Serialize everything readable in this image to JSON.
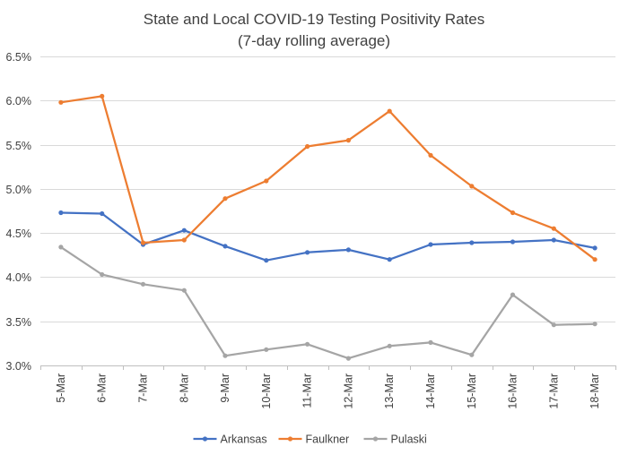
{
  "chart_data": {
    "type": "line",
    "title": "State and Local COVID-19 Testing Positivity Rates",
    "subtitle": "(7-day rolling average)",
    "xlabel": "",
    "ylabel": "",
    "categories": [
      "5-Mar",
      "6-Mar",
      "7-Mar",
      "8-Mar",
      "9-Mar",
      "10-Mar",
      "11-Mar",
      "12-Mar",
      "13-Mar",
      "14-Mar",
      "15-Mar",
      "16-Mar",
      "17-Mar",
      "18-Mar"
    ],
    "ylim": [
      3.0,
      6.5
    ],
    "yticks": [
      3.0,
      3.5,
      4.0,
      4.5,
      5.0,
      5.5,
      6.0,
      6.5
    ],
    "ytick_labels": [
      "3.0%",
      "3.5%",
      "4.0%",
      "4.5%",
      "5.0%",
      "5.5%",
      "6.0%",
      "6.5%"
    ],
    "grid": true,
    "legend_position": "bottom",
    "series": [
      {
        "name": "Arkansas",
        "color": "#4472c4",
        "values": [
          4.73,
          4.72,
          4.37,
          4.53,
          4.35,
          4.19,
          4.28,
          4.31,
          4.2,
          4.37,
          4.39,
          4.4,
          4.42,
          4.33
        ]
      },
      {
        "name": "Faulkner",
        "color": "#ed7d31",
        "values": [
          5.98,
          6.05,
          4.39,
          4.42,
          4.89,
          5.09,
          5.48,
          5.55,
          5.88,
          5.38,
          5.03,
          4.73,
          4.55,
          4.2
        ]
      },
      {
        "name": "Pulaski",
        "color": "#a5a5a5",
        "values": [
          4.34,
          4.03,
          3.92,
          3.85,
          3.11,
          3.18,
          3.24,
          3.08,
          3.22,
          3.26,
          3.12,
          3.8,
          3.46,
          3.47
        ]
      }
    ]
  }
}
